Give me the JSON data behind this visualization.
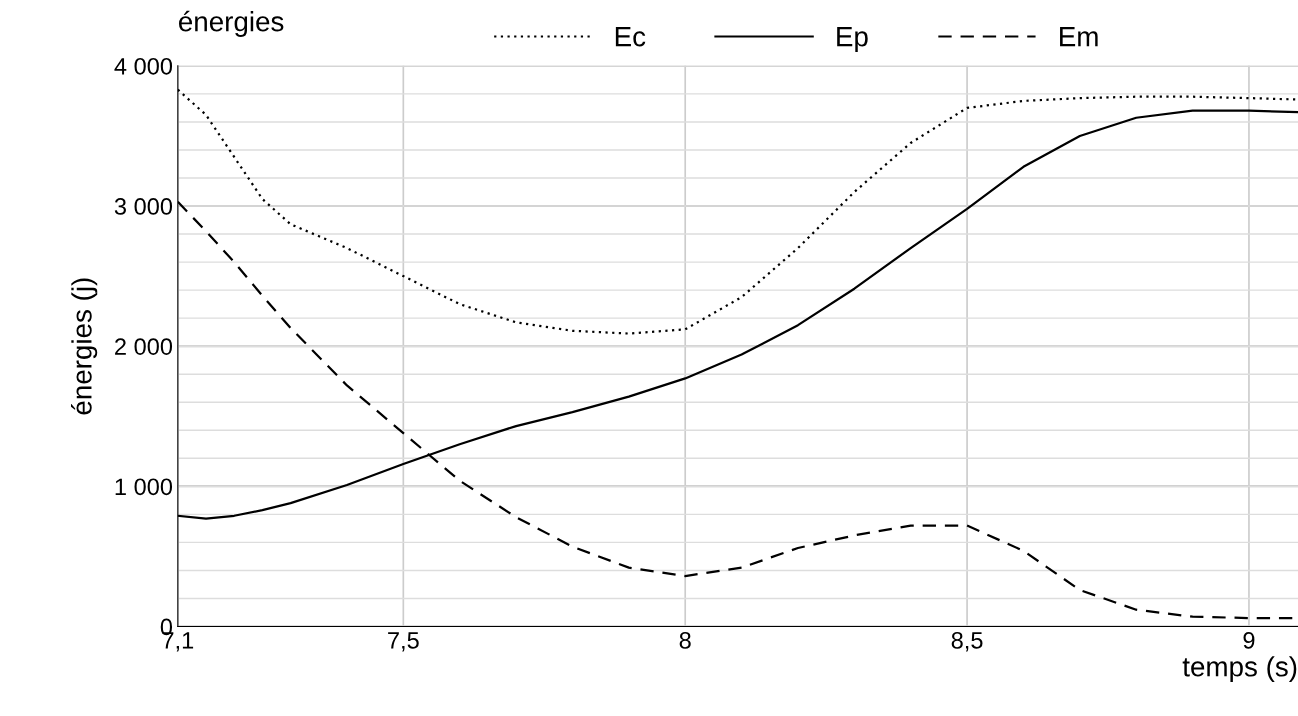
{
  "chart_data": {
    "type": "line",
    "legend_title": "énergies",
    "ylabel": "énergies (j)",
    "xlabel": "temps (s)",
    "xlim": [
      7.1,
      9.087
    ],
    "ylim": [
      0,
      4000
    ],
    "xticks": [
      {
        "value": 7.1,
        "label": "7,1"
      },
      {
        "value": 7.5,
        "label": "7,5"
      },
      {
        "value": 8,
        "label": "8"
      },
      {
        "value": 8.5,
        "label": "8,5"
      },
      {
        "value": 9,
        "label": "9"
      }
    ],
    "yticks": [
      {
        "value": 0,
        "label": "0"
      },
      {
        "value": 200,
        "label": null
      },
      {
        "value": 400,
        "label": null
      },
      {
        "value": 600,
        "label": null
      },
      {
        "value": 800,
        "label": null
      },
      {
        "value": 1000,
        "label": "1 000"
      },
      {
        "value": 1200,
        "label": null
      },
      {
        "value": 1400,
        "label": null
      },
      {
        "value": 1600,
        "label": null
      },
      {
        "value": 1800,
        "label": null
      },
      {
        "value": 2000,
        "label": "2 000"
      },
      {
        "value": 2200,
        "label": null
      },
      {
        "value": 2400,
        "label": null
      },
      {
        "value": 2600,
        "label": null
      },
      {
        "value": 2800,
        "label": null
      },
      {
        "value": 3000,
        "label": "3 000"
      },
      {
        "value": 3200,
        "label": null
      },
      {
        "value": 3400,
        "label": null
      },
      {
        "value": 3600,
        "label": null
      },
      {
        "value": 3800,
        "label": null
      },
      {
        "value": 4000,
        "label": "4 000"
      }
    ],
    "grid": true,
    "legend": "top",
    "marker": "none",
    "x": [
      7.1,
      7.15,
      7.2,
      7.25,
      7.3,
      7.4,
      7.5,
      7.6,
      7.7,
      7.8,
      7.9,
      8.0,
      8.1,
      8.2,
      8.3,
      8.4,
      8.5,
      8.6,
      8.7,
      8.8,
      8.9,
      9.0,
      9.087
    ],
    "series": [
      {
        "name": "Ec",
        "color": "#000000",
        "line_style": "dotted",
        "values": [
          3830,
          3650,
          3350,
          3050,
          2870,
          2700,
          2500,
          2300,
          2170,
          2110,
          2090,
          2120,
          2350,
          2700,
          3100,
          3450,
          3700,
          3750,
          3770,
          3780,
          3780,
          3770,
          3760
        ]
      },
      {
        "name": "Ep",
        "color": "#000000",
        "line_style": "solid",
        "values": [
          790,
          770,
          790,
          830,
          880,
          1010,
          1160,
          1300,
          1430,
          1530,
          1640,
          1770,
          1940,
          2150,
          2410,
          2700,
          2980,
          3280,
          3500,
          3630,
          3680,
          3680,
          3670
        ]
      },
      {
        "name": "Em",
        "color": "#000000",
        "line_style": "dashed",
        "values": [
          3030,
          2820,
          2600,
          2360,
          2130,
          1720,
          1380,
          1040,
          780,
          570,
          420,
          360,
          420,
          560,
          650,
          720,
          720,
          540,
          260,
          120,
          70,
          60,
          60
        ]
      }
    ]
  }
}
